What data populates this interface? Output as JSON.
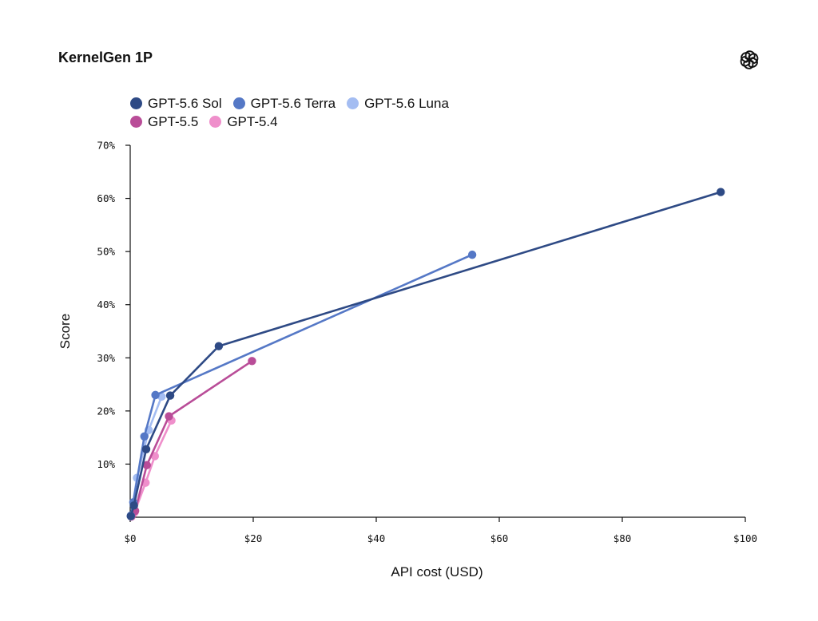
{
  "chart_data": {
    "type": "line",
    "title": "KernelGen 1P",
    "xlabel": "API cost (USD)",
    "ylabel": "Score",
    "xlim": [
      0,
      100
    ],
    "ylim": [
      0,
      70
    ],
    "x_ticks": [
      {
        "value": 0,
        "label": "$0"
      },
      {
        "value": 20,
        "label": "$20"
      },
      {
        "value": 40,
        "label": "$40"
      },
      {
        "value": 60,
        "label": "$60"
      },
      {
        "value": 80,
        "label": "$80"
      },
      {
        "value": 100,
        "label": "$100"
      }
    ],
    "y_ticks": [
      {
        "value": 10,
        "label": "10%"
      },
      {
        "value": 20,
        "label": "20%"
      },
      {
        "value": 30,
        "label": "30%"
      },
      {
        "value": 40,
        "label": "40%"
      },
      {
        "value": 50,
        "label": "50%"
      },
      {
        "value": 60,
        "label": "60%"
      },
      {
        "value": 70,
        "label": "70%"
      }
    ],
    "grid": false,
    "legend_position": "top-left",
    "series": [
      {
        "name": "GPT-5.6 Sol",
        "color": "#2e4a85",
        "points": [
          [
            0.1,
            0.2
          ],
          [
            0.6,
            2.2
          ],
          [
            2.6,
            12.8
          ],
          [
            6.5,
            22.9
          ],
          [
            14.4,
            32.2
          ],
          [
            96.0,
            61.2
          ]
        ]
      },
      {
        "name": "GPT-5.6 Terra",
        "color": "#5578c6",
        "points": [
          [
            0.1,
            0.3
          ],
          [
            0.5,
            2.8
          ],
          [
            2.3,
            15.2
          ],
          [
            4.1,
            23.0
          ],
          [
            55.6,
            49.4
          ]
        ]
      },
      {
        "name": "GPT-5.6 Luna",
        "color": "#a4bdf2",
        "points": [
          [
            0.1,
            0.2
          ],
          [
            1.1,
            7.4
          ],
          [
            3.0,
            16.4
          ],
          [
            5.1,
            22.7
          ]
        ]
      },
      {
        "name": "GPT-5.5",
        "color": "#b94d98",
        "points": [
          [
            0.2,
            0.2
          ],
          [
            0.8,
            1.2
          ],
          [
            2.7,
            9.8
          ],
          [
            6.3,
            19.0
          ],
          [
            19.8,
            29.4
          ]
        ]
      },
      {
        "name": "GPT-5.4",
        "color": "#ef8fcb",
        "points": [
          [
            0.2,
            0.1
          ],
          [
            0.7,
            0.9
          ],
          [
            2.5,
            6.5
          ],
          [
            4.0,
            11.5
          ],
          [
            6.7,
            18.2
          ]
        ]
      }
    ]
  },
  "legend_rows": [
    [
      "GPT-5.6 Sol",
      "GPT-5.6 Terra",
      "GPT-5.6 Luna"
    ],
    [
      "GPT-5.5",
      "GPT-5.4"
    ]
  ],
  "logo": {
    "icon": "openai-logo-icon"
  }
}
